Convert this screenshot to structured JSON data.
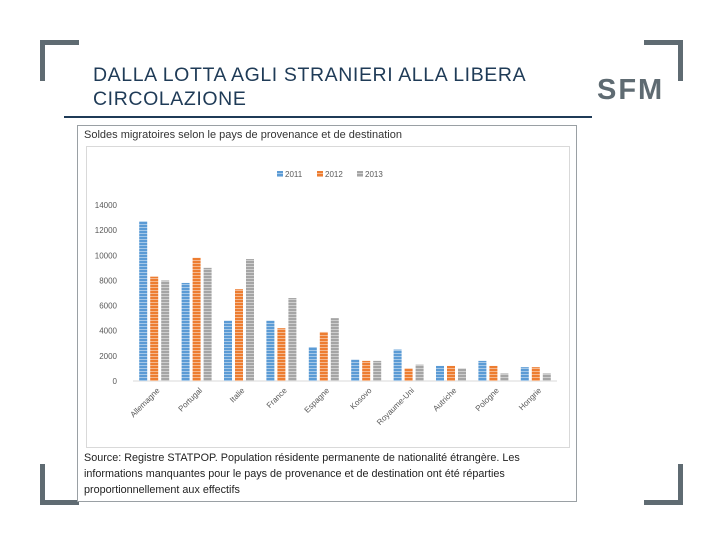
{
  "slide": {
    "title_line1": "DALLA LOTTA AGLI STRANIERI ALLA LIBERA",
    "title_line2": "CIRCOLAZIONE",
    "logo": "SFM"
  },
  "figure": {
    "title": "Soldes migratoires selon le pays de provenance et de destination",
    "source_line1": "Source: Registre STATPOP. Population résidente permanente de nationalité étrangère. Les",
    "source_line2": "informations manquantes pour le pays de provenance et de destination ont été réparties",
    "source_line3": "proportionnellement aux effectifs"
  },
  "chart_data": {
    "type": "bar",
    "title": "Soldes migratoires selon le pays de provenance et de destination",
    "xlabel": "",
    "ylabel": "",
    "ylim": [
      0,
      14000
    ],
    "yticks": [
      0,
      2000,
      4000,
      6000,
      8000,
      10000,
      12000,
      14000
    ],
    "grid": false,
    "legend_position": "top-center",
    "categories": [
      "Allemagne",
      "Portugal",
      "Italie",
      "France",
      "Espagne",
      "Kosovo",
      "Royaume-Uni",
      "Autriche",
      "Pologne",
      "Hongrie"
    ],
    "series": [
      {
        "name": "2011",
        "color": "#5b9bd5",
        "values": [
          12700,
          7800,
          4800,
          4800,
          2700,
          1700,
          2500,
          1200,
          1600,
          1100
        ]
      },
      {
        "name": "2012",
        "color": "#ed7d31",
        "values": [
          8300,
          9800,
          7300,
          4200,
          3900,
          1600,
          1000,
          1200,
          1200,
          1100
        ]
      },
      {
        "name": "2013",
        "color": "#a5a5a5",
        "values": [
          8000,
          9000,
          9700,
          6600,
          5000,
          1600,
          1300,
          1000,
          600,
          600
        ]
      }
    ]
  }
}
